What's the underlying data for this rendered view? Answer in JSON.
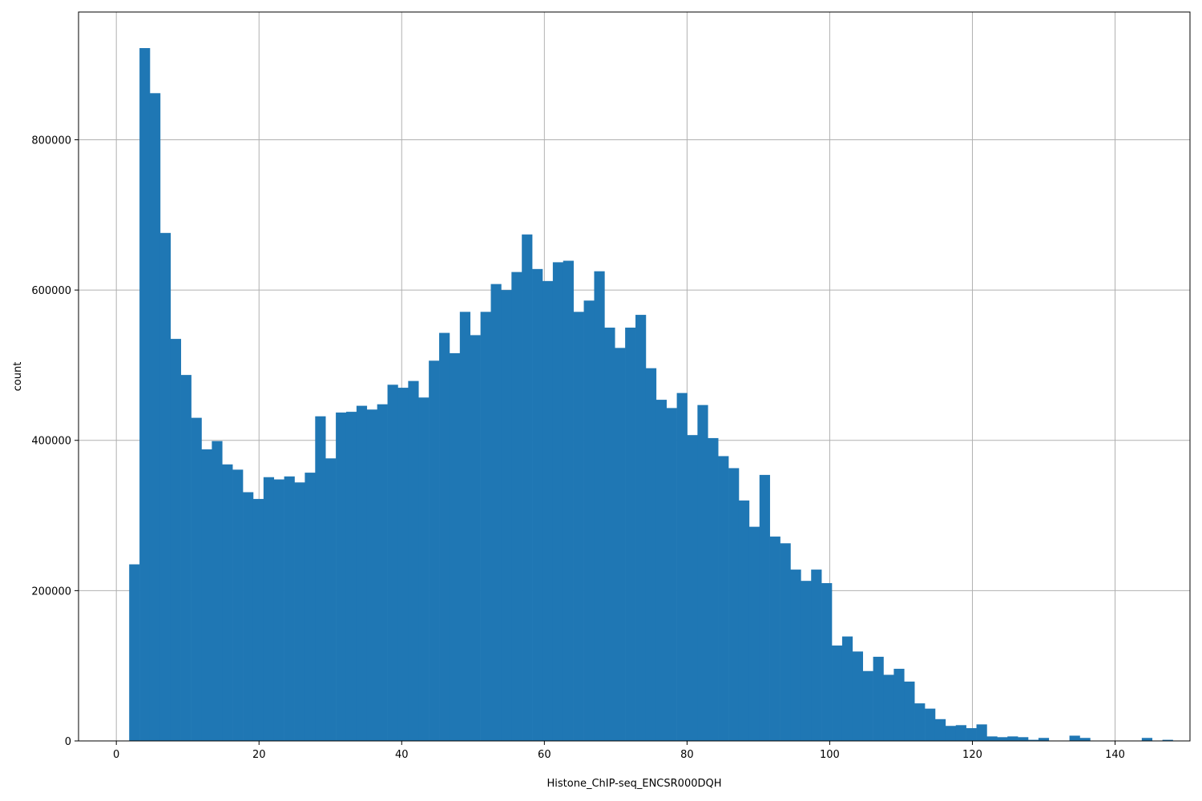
{
  "chart_data": {
    "type": "bar",
    "subtype": "histogram",
    "xlabel": "Histone_ChIP-seq_ENCSR000DQH",
    "ylabel": "count",
    "xlim": [
      -5.3,
      150.5
    ],
    "ylim": [
      0,
      970000
    ],
    "x_ticks": [
      0,
      20,
      40,
      60,
      80,
      100,
      120,
      140
    ],
    "y_ticks": [
      0,
      200000,
      400000,
      600000,
      800000
    ],
    "grid": true,
    "bar_color": "#1f77b4",
    "grid_color": "#b0b0b0",
    "bin_start": 1.8,
    "bin_width": 1.4484,
    "values": [
      235000,
      922000,
      862000,
      676000,
      535000,
      487000,
      430000,
      388000,
      399000,
      368000,
      361000,
      331000,
      322000,
      351000,
      348000,
      352000,
      344000,
      357000,
      432000,
      376000,
      437000,
      438000,
      446000,
      441000,
      448000,
      474000,
      470000,
      479000,
      457000,
      506000,
      543000,
      516000,
      571000,
      540000,
      571000,
      608000,
      600000,
      624000,
      674000,
      628000,
      612000,
      637000,
      639000,
      571000,
      586000,
      625000,
      550000,
      523000,
      550000,
      567000,
      496000,
      454000,
      443000,
      463000,
      407000,
      447000,
      403000,
      379000,
      363000,
      320000,
      285000,
      354000,
      272000,
      263000,
      228000,
      213000,
      228000,
      210000,
      127000,
      139000,
      119000,
      93000,
      112000,
      88000,
      96000,
      79000,
      50000,
      43000,
      29000,
      20000,
      21000,
      17000,
      22000,
      6000,
      5000,
      6000,
      5000,
      1500,
      4000,
      0,
      0,
      7000,
      4000,
      0,
      0,
      0,
      0,
      0,
      4000,
      0,
      1500
    ]
  }
}
